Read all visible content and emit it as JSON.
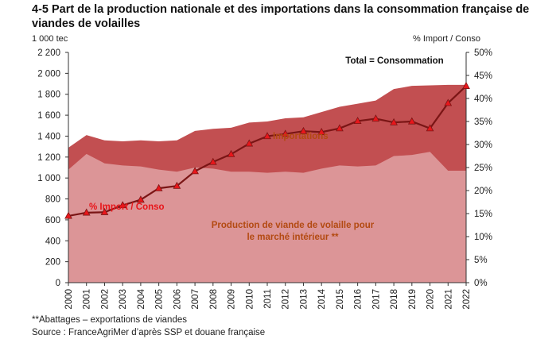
{
  "title": "4-5 Part de la production nationale et des importations dans la consommation française de viandes de volailles",
  "footnotes": {
    "abattages": "**Abattages – exportations de viandes",
    "source": "Source : FranceAgriMer d’après SSP et douane française"
  },
  "chart_data": {
    "type": "area",
    "x": [
      "2000",
      "2001",
      "2002",
      "2003",
      "2004",
      "2005",
      "2006",
      "2007",
      "2008",
      "2009",
      "2010",
      "2011",
      "2012",
      "2013",
      "2014",
      "2015",
      "2016",
      "2017",
      "2018",
      "2019",
      "2020",
      "2021",
      "2022"
    ],
    "left_axis": {
      "unit_label": "1 000 tec",
      "ylim": [
        0,
        2200
      ],
      "ticks": [
        0,
        200,
        400,
        600,
        800,
        1000,
        1200,
        1400,
        1600,
        1800,
        2000,
        2200
      ],
      "tick_labels": [
        "0",
        "200",
        "400",
        "600",
        "800",
        "1 000",
        "1 200",
        "1 400",
        "1 600",
        "1 800",
        "2 000",
        "2 200"
      ]
    },
    "right_axis": {
      "unit_label": "% Import / Conso",
      "ylim": [
        0,
        50
      ],
      "ticks": [
        0,
        5,
        10,
        15,
        20,
        25,
        30,
        35,
        40,
        45,
        50
      ],
      "tick_labels": [
        "0%",
        "5%",
        "10%",
        "15%",
        "20%",
        "25%",
        "30%",
        "35%",
        "40%",
        "45%",
        "50%"
      ]
    },
    "grid": false,
    "series": [
      {
        "name": "Production de viande de volaille pour le marché intérieur **",
        "axis": "left",
        "kind": "area",
        "color": "#dc9597",
        "values": [
          1080,
          1230,
          1140,
          1120,
          1110,
          1080,
          1060,
          1100,
          1090,
          1060,
          1060,
          1050,
          1060,
          1050,
          1090,
          1120,
          1110,
          1120,
          1210,
          1220,
          1250,
          1070,
          1070
        ]
      },
      {
        "name": "Importations",
        "axis": "left",
        "kind": "area-stacked-total",
        "color": "#c24f51",
        "values": [
          1290,
          1410,
          1360,
          1350,
          1360,
          1350,
          1360,
          1450,
          1470,
          1480,
          1530,
          1540,
          1570,
          1580,
          1630,
          1680,
          1710,
          1740,
          1850,
          1880,
          1885,
          1890,
          1890
        ]
      },
      {
        "name": "% Import / Conso",
        "axis": "right",
        "kind": "line",
        "color": "#7a1515",
        "marker_color": "#e8161b",
        "values": [
          14.5,
          15.2,
          15.3,
          16.8,
          18.0,
          20.5,
          21.0,
          24.2,
          26.2,
          27.9,
          30.2,
          31.8,
          32.3,
          32.9,
          32.7,
          33.5,
          35.1,
          35.6,
          34.8,
          35.0,
          33.5,
          39.0,
          42.7
        ]
      }
    ],
    "annotations": {
      "total": "Total = Consommation",
      "importations": "Importations",
      "pct": "% Import / Conso",
      "production_line1": "Production de viande de volaille pour",
      "production_line2": "le marché intérieur **"
    },
    "colors": {
      "annotation_orange": "#b34a12",
      "pct_label": "#e8161b"
    }
  }
}
